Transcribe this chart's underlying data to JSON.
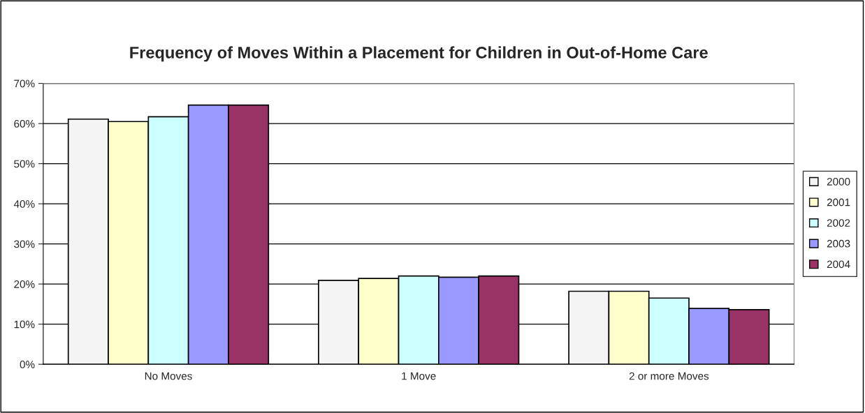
{
  "chart_data": {
    "type": "bar",
    "title": "Frequency of Moves Within a Placement for Children in Out-of-Home Care",
    "categories": [
      "No Moves",
      "1 Move",
      "2 or more Moves"
    ],
    "series": [
      {
        "name": "2000",
        "color": "#f4f4f4",
        "values": [
          61.1,
          20.9,
          18.2
        ]
      },
      {
        "name": "2001",
        "color": "#ffffcc",
        "values": [
          60.5,
          21.4,
          18.2
        ]
      },
      {
        "name": "2002",
        "color": "#ccffff",
        "values": [
          61.7,
          22.0,
          16.5
        ]
      },
      {
        "name": "2003",
        "color": "#9999ff",
        "values": [
          64.6,
          21.7,
          13.9
        ]
      },
      {
        "name": "2004",
        "color": "#993366",
        "values": [
          64.6,
          22.0,
          13.6
        ]
      }
    ],
    "ylim": [
      0,
      70
    ],
    "yticks": [
      {
        "value": 0,
        "label": "0%"
      },
      {
        "value": 10,
        "label": "10%"
      },
      {
        "value": 20,
        "label": "20%"
      },
      {
        "value": 30,
        "label": "30%"
      },
      {
        "value": 40,
        "label": "40%"
      },
      {
        "value": 50,
        "label": "50%"
      },
      {
        "value": 60,
        "label": "60%"
      },
      {
        "value": 70,
        "label": "70%"
      }
    ],
    "grid": "y",
    "legend": "right"
  }
}
